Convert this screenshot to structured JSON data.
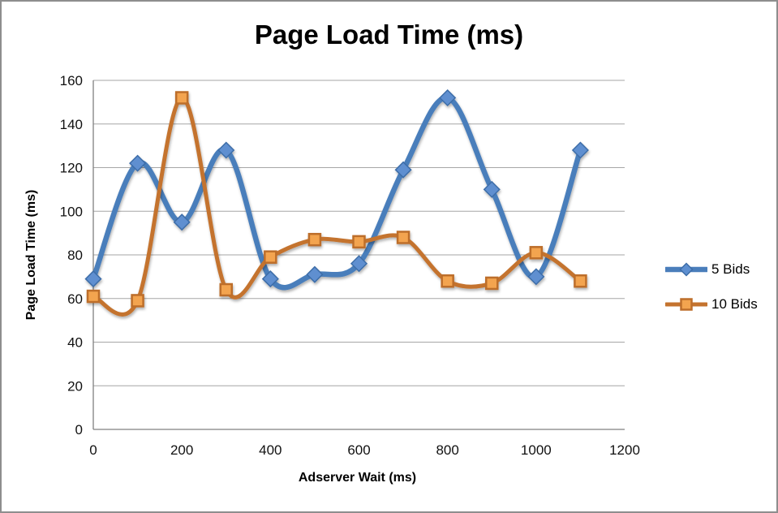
{
  "window": {
    "background": "#ffffff",
    "border_color": "#8e8e8e"
  },
  "chart_data": {
    "type": "line",
    "title": "Page Load Time (ms)",
    "xlabel": "Adserver Wait (ms)",
    "ylabel": "Page Load Time (ms)",
    "x": [
      0,
      100,
      200,
      300,
      400,
      500,
      600,
      700,
      800,
      900,
      1000,
      1100
    ],
    "xlim": [
      0,
      1200
    ],
    "ylim": [
      0,
      160
    ],
    "xticks": [
      0,
      200,
      400,
      600,
      800,
      1000,
      1200
    ],
    "yticks": [
      0,
      20,
      40,
      60,
      80,
      100,
      120,
      140,
      160
    ],
    "grid": true,
    "smooth_lines": true,
    "legend_position": "right",
    "gridline_color": "#a6a6a6",
    "axis_color": "#808080",
    "series": [
      {
        "name": "5 Bids",
        "values": [
          69,
          122,
          95,
          128,
          69,
          71,
          76,
          119,
          152,
          110,
          70,
          128
        ],
        "color": "#4a7ebb",
        "line_width": 6.5,
        "marker": "diamond",
        "marker_fill": "#5e8fd0",
        "marker_stroke": "#3d6da8"
      },
      {
        "name": "10 Bids",
        "values": [
          61,
          59,
          152,
          64,
          79,
          87,
          86,
          88,
          68,
          67,
          81,
          68
        ],
        "color": "#c4732e",
        "line_width": 5,
        "marker": "square",
        "marker_fill": "#f3a44f",
        "marker_stroke": "#bd6e2b"
      }
    ]
  }
}
